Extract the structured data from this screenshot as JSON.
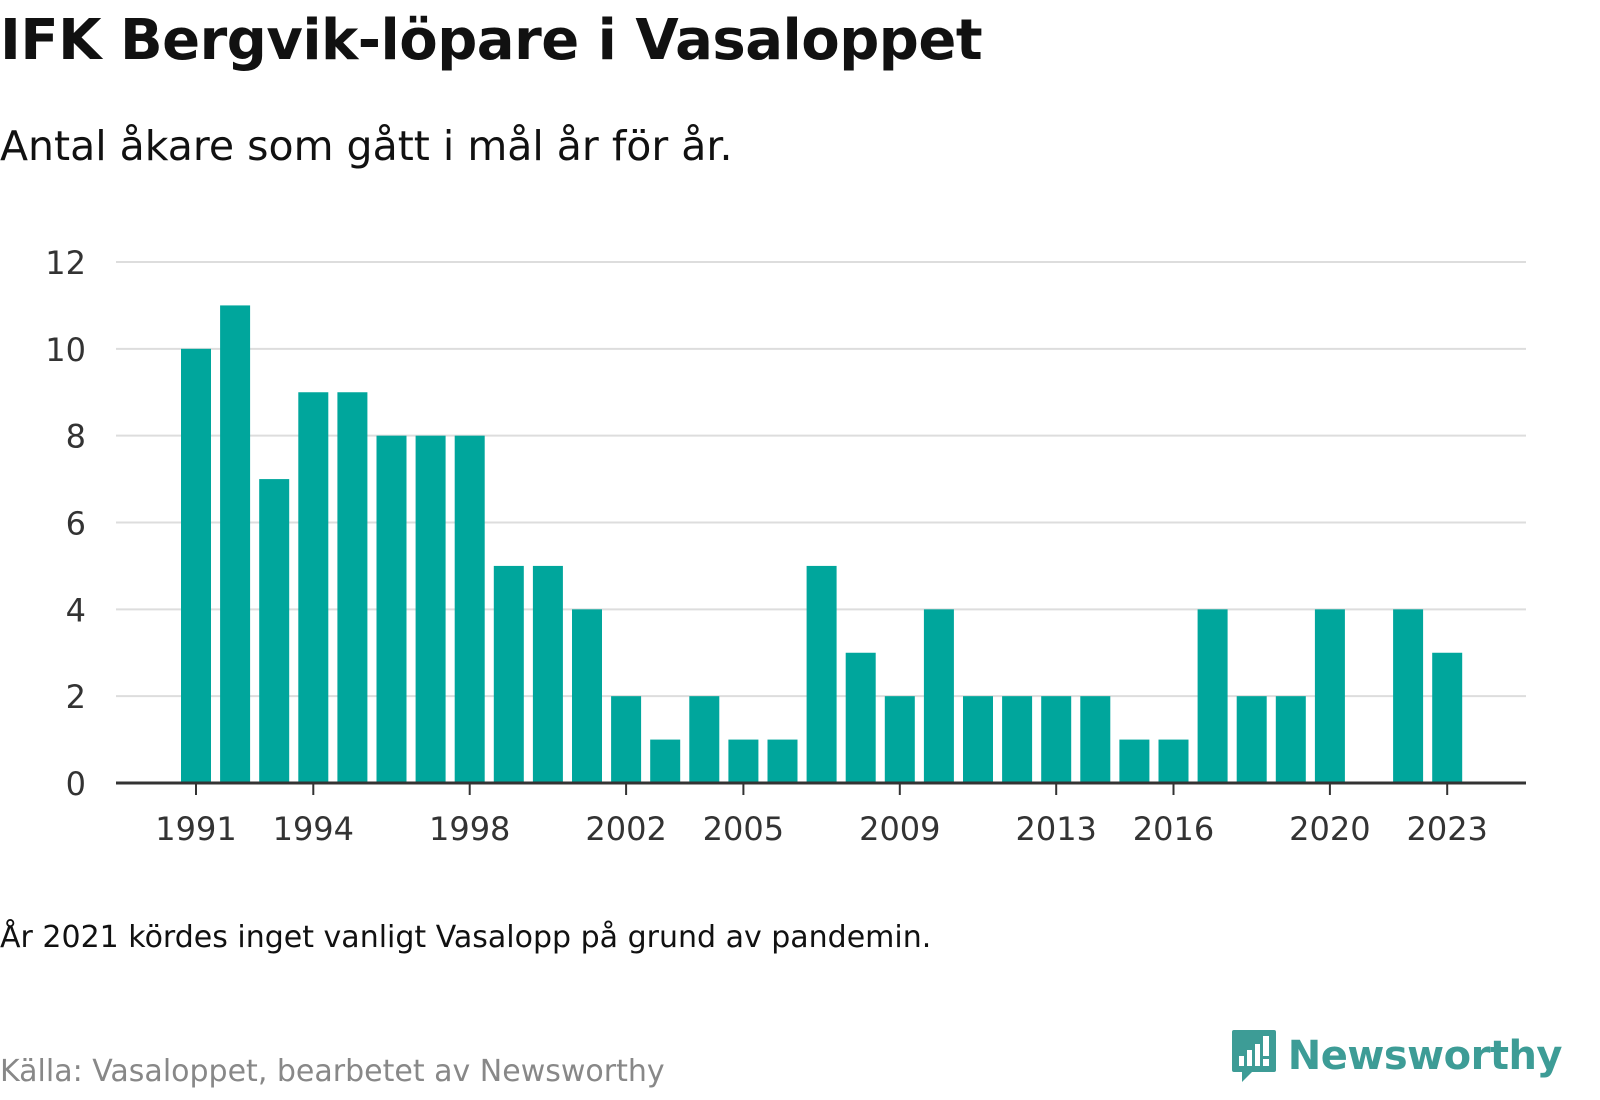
{
  "title": "IFK Bergvik-löpare i Vasaloppet",
  "subtitle": "Antal åkare som gått i mål år för år.",
  "note": "År 2021 kördes inget vanligt Vasalopp på grund av pandemin.",
  "source": "Källa: Vasaloppet, bearbetet av Newsworthy",
  "brand": {
    "name": "Newsworthy",
    "icon": "newsworthy-logo-icon"
  },
  "colors": {
    "bar": "#00a69c",
    "grid": "#dddddd",
    "axis": "#333333",
    "brand": "#3d9c96"
  },
  "chart_data": {
    "type": "bar",
    "categories": [
      "1991",
      "1992",
      "1993",
      "1994",
      "1995",
      "1996",
      "1997",
      "1998",
      "1999",
      "2000",
      "2001",
      "2002",
      "2003",
      "2004",
      "2005",
      "2006",
      "2007",
      "2008",
      "2009",
      "2010",
      "2011",
      "2012",
      "2013",
      "2014",
      "2015",
      "2016",
      "2017",
      "2018",
      "2019",
      "2020",
      "2021",
      "2022",
      "2023"
    ],
    "values": [
      10,
      11,
      7,
      9,
      9,
      8,
      8,
      8,
      5,
      5,
      4,
      2,
      1,
      2,
      1,
      1,
      5,
      3,
      2,
      4,
      2,
      2,
      2,
      2,
      1,
      1,
      4,
      2,
      2,
      4,
      0,
      4,
      3
    ],
    "xticks": [
      "1991",
      "1994",
      "1998",
      "2002",
      "2005",
      "2009",
      "2013",
      "2016",
      "2020",
      "2023"
    ],
    "yticks": [
      0,
      2,
      4,
      6,
      8,
      10,
      12
    ],
    "ylim": [
      0,
      12
    ],
    "xlabel": "",
    "ylabel": "",
    "grid": true
  }
}
